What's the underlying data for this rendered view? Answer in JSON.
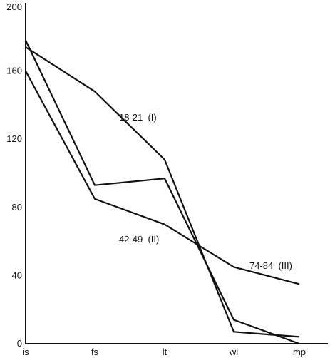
{
  "chart_data": {
    "type": "line",
    "categories": [
      "is",
      "fs",
      "lt",
      "wl",
      "mp"
    ],
    "y_ticks": [
      "0",
      "40",
      "80",
      "120",
      "160",
      "200"
    ],
    "ylim": [
      0,
      200
    ],
    "grid": false,
    "title": "",
    "xlabel": "",
    "ylabel": "",
    "series": [
      {
        "name": "18-21  (I)",
        "values": [
          174,
          148,
          108,
          7,
          4
        ]
      },
      {
        "name": "42-49  (II)",
        "values": [
          178,
          93,
          97,
          14,
          0
        ]
      },
      {
        "name": "74-84  (III)",
        "values": [
          160,
          85,
          70,
          45,
          35
        ]
      }
    ]
  }
}
